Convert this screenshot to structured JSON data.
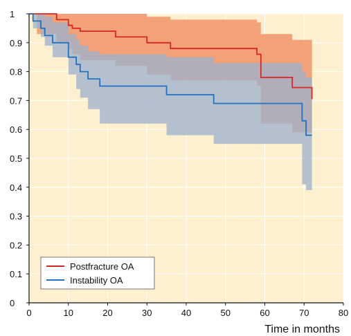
{
  "chart_data": {
    "type": "line",
    "xlabel": "Time in months",
    "ylabel": "",
    "xlim": [
      0,
      80
    ],
    "ylim": [
      0,
      1
    ],
    "x_ticks": [
      0,
      10,
      20,
      30,
      40,
      50,
      60,
      70,
      80
    ],
    "y_ticks": [
      0,
      0.1,
      0.2,
      0.3,
      0.4,
      0.5,
      0.6,
      0.7,
      0.8,
      0.9,
      1
    ],
    "y_tick_labels": [
      "0",
      "0.1",
      "0.2",
      "0.3",
      "0.4",
      "0.5",
      "0.6",
      "0.7",
      "0.8",
      "0.9",
      "1"
    ],
    "grid": true,
    "legend_position": "bottom-left",
    "background_color": "#fdf0cf",
    "series": [
      {
        "name": "Postfracture OA",
        "color": "#d62728",
        "band_color": "#f08a5c",
        "x": [
          0,
          2,
          7,
          10,
          11,
          13,
          22,
          30,
          36,
          58,
          59,
          67,
          72
        ],
        "y": [
          1.0,
          1.0,
          0.98,
          0.96,
          0.95,
          0.94,
          0.92,
          0.9,
          0.88,
          0.86,
          0.78,
          0.745,
          0.705
        ],
        "ci_lower": [
          1.0,
          0.93,
          0.9,
          0.88,
          0.86,
          0.84,
          0.82,
          0.79,
          0.77,
          0.75,
          0.62,
          0.59,
          0.55
        ],
        "ci_upper": [
          1.0,
          1.0,
          1.0,
          1.0,
          1.0,
          1.0,
          1.0,
          0.99,
          0.98,
          0.97,
          0.93,
          0.91,
          0.89
        ]
      },
      {
        "name": "Instability OA",
        "color": "#1f72c4",
        "band_color": "#9fb2cc",
        "x": [
          0,
          1,
          3,
          4,
          6,
          10,
          12,
          13,
          15,
          18,
          35,
          47,
          69.5,
          70.5,
          72
        ],
        "y": [
          1.0,
          0.975,
          0.95,
          0.925,
          0.9,
          0.85,
          0.825,
          0.8,
          0.775,
          0.75,
          0.72,
          0.69,
          0.63,
          0.58,
          0.58
        ],
        "ci_lower": [
          1.0,
          0.95,
          0.92,
          0.89,
          0.85,
          0.79,
          0.74,
          0.71,
          0.67,
          0.62,
          0.58,
          0.55,
          0.41,
          0.39,
          0.39
        ],
        "ci_upper": [
          1.0,
          1.0,
          1.0,
          0.99,
          0.97,
          0.93,
          0.91,
          0.89,
          0.87,
          0.86,
          0.85,
          0.83,
          0.8,
          0.78,
          0.78
        ]
      }
    ]
  }
}
